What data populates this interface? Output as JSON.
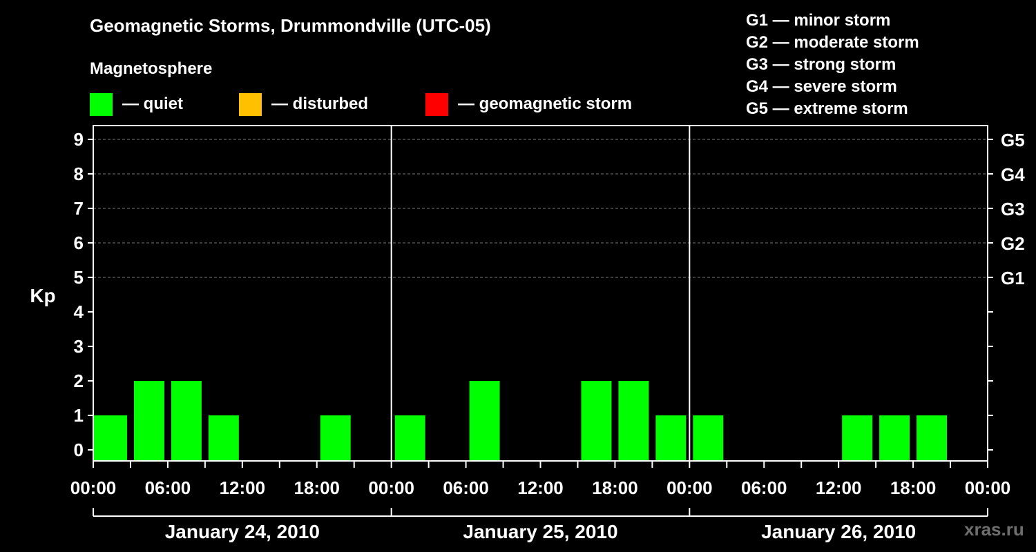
{
  "chart_data": {
    "type": "bar",
    "title": "Geomagnetic Storms, Drummondville (UTC-05)",
    "subtitle": "Magnetosphere",
    "legend": [
      {
        "label": "— quiet",
        "color": "#00ff00"
      },
      {
        "label": "— disturbed",
        "color": "#ffc000"
      },
      {
        "label": "— geomagnetic storm",
        "color": "#ff0000"
      }
    ],
    "scale_legend": [
      "G1 — minor storm",
      "G2 — moderate storm",
      "G3 — strong storm",
      "G4 — severe storm",
      "G5 — extreme storm"
    ],
    "ylabel": "Kp",
    "ylim": [
      0,
      9
    ],
    "y_ticks": [
      "0",
      "1",
      "2",
      "3",
      "4",
      "5",
      "6",
      "7",
      "8",
      "9"
    ],
    "right_ticks": [
      {
        "kp": 5,
        "label": "G1"
      },
      {
        "kp": 6,
        "label": "G2"
      },
      {
        "kp": 7,
        "label": "G3"
      },
      {
        "kp": 8,
        "label": "G4"
      },
      {
        "kp": 9,
        "label": "G5"
      }
    ],
    "x_ticks": [
      "00:00",
      "06:00",
      "12:00",
      "18:00",
      "00:00",
      "06:00",
      "12:00",
      "18:00",
      "00:00",
      "06:00",
      "12:00",
      "18:00",
      "00:00"
    ],
    "days": [
      "January 24, 2010",
      "January 25, 2010",
      "January 26, 2010"
    ],
    "interval_hours": 3,
    "series": [
      {
        "values": [
          1,
          2,
          2,
          1,
          0,
          0,
          1,
          0,
          1,
          0,
          2,
          0,
          0,
          2,
          2,
          1,
          1,
          0,
          0,
          0,
          1,
          1,
          1,
          0
        ],
        "color": "#00ff00"
      }
    ],
    "grid": true
  },
  "watermark": "xras.ru"
}
